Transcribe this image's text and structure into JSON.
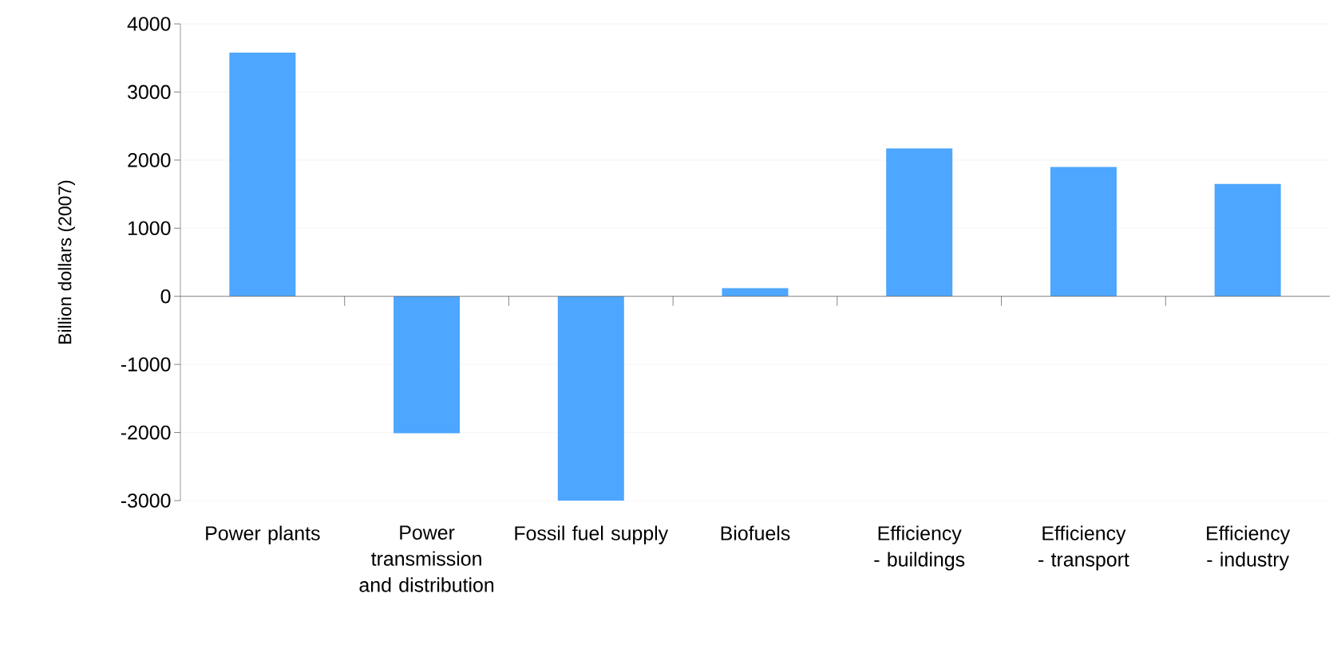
{
  "chart_data": {
    "type": "bar",
    "ylabel": "Billion dollars (2007)",
    "categories": [
      "Power plants",
      "Power transmission and distribution",
      "Fossil fuel supply",
      "Biofuels",
      "Efficiency - buildings",
      "Efficiency - transport",
      "Efficiency - industry"
    ],
    "values": [
      3580,
      -2010,
      -3000,
      120,
      2170,
      1900,
      1650
    ],
    "color": "#4da6ff",
    "ylim": [
      -3000,
      4000
    ],
    "yticks": [
      -3000,
      -2000,
      -1000,
      0,
      1000,
      2000,
      3000,
      4000
    ],
    "grid": "y"
  }
}
